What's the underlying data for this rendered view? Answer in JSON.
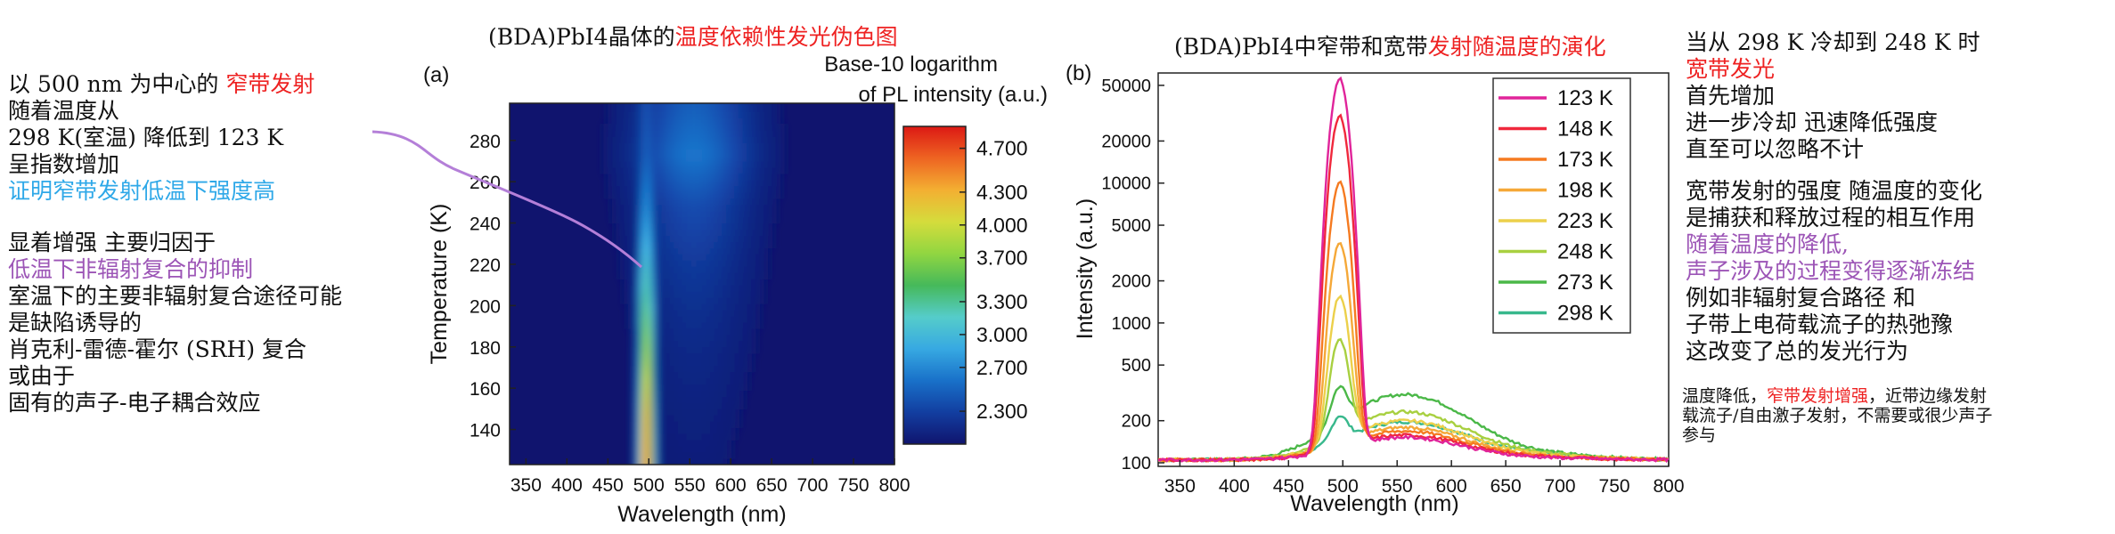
{
  "titles": {
    "left_prefix": "(BDA)PbI4晶体的",
    "left_highlight": "温度依赖性发光伪色图",
    "right_prefix": "(BDA)PbI4中窄带和宽带",
    "right_highlight": "发射随温度的演化"
  },
  "left_notes": {
    "line1_prefix": "以 500 nm 为中心的 ",
    "line1_highlight": "窄带发射",
    "line2": "随着温度从",
    "line3": "298 K(室温) 降低到 123 K",
    "line4": "呈指数增加",
    "line5": "证明窄带发射低温下强度高",
    "line6": "显着增强  主要归因于",
    "line7": "低温下非辐射复合的抑制",
    "line8": "室温下的主要非辐射复合途径可能",
    "line9": "是缺陷诱导的",
    "line10": "肖克利-雷德-霍尔 (SRH) 复合",
    "line11": "或由于",
    "line12": "固有的声子-电子耦合效应"
  },
  "right_notes": {
    "p1_line1": "当从 298 K 冷却到 248 K 时",
    "p1_line2": "宽带发光",
    "p1_line3": "首先增加",
    "p1_line4": "进一步冷却 迅速降低强度",
    "p1_line5": "直至可以忽略不计",
    "p2_line1": "宽带发射的强度 随温度的变化",
    "p2_line2": "是捕获和释放过程的相互作用",
    "p2_line3": "随着温度的降低,",
    "p2_line4": "声子涉及的过程变得逐渐冻结",
    "p2_line5": "例如非辐射复合路径 和",
    "p2_line6": "子带上电荷载流子的热弛豫",
    "p2_line7": "这改变了总的发光行为",
    "p3_line1_prefix": "温度降低，",
    "p3_line1_highlight": "窄带发射增强",
    "p3_line1_suffix": "，近带边缘发射",
    "p3_line2": "载流子/自由激子发射，不需要或很少声子",
    "p3_line3": "参与"
  },
  "chart_data": [
    {
      "panel_label": "(a)",
      "type": "heatmap",
      "xlabel": "Wavelength (nm)",
      "ylabel": "Temperature (K)",
      "xlim": [
        330,
        800
      ],
      "ylim": [
        123,
        298
      ],
      "xticks": [
        350,
        400,
        450,
        500,
        550,
        600,
        650,
        700,
        750,
        800
      ],
      "yticks": [
        140,
        160,
        180,
        200,
        220,
        240,
        260,
        280
      ],
      "colorbar": {
        "title_line1": "Base-10 logarithm",
        "title_line2": "of PL intensity (a.u.)",
        "ticks": [
          "4.700",
          "4.300",
          "4.000",
          "3.700",
          "3.300",
          "3.000",
          "2.700",
          "2.300"
        ],
        "range": [
          2.0,
          4.9
        ]
      },
      "rows_temperature_K": [
        123,
        148,
        173,
        198,
        223,
        248,
        273,
        298
      ],
      "peak_center_nm": 497,
      "peak_log_intensity": [
        4.75,
        4.47,
        4.0,
        3.58,
        3.15,
        2.8,
        2.55,
        2.45
      ],
      "broad_center_nm": 555,
      "broad_log_intensity": [
        2.05,
        2.07,
        2.1,
        2.14,
        2.2,
        2.28,
        2.45,
        2.35
      ]
    },
    {
      "panel_label": "(b)",
      "type": "line",
      "xlabel": "Wavelength (nm)",
      "ylabel": "Intensity (a.u.)",
      "xlim": [
        330,
        800
      ],
      "ylim": [
        100,
        65000
      ],
      "yscale": "log",
      "xticks": [
        350,
        400,
        450,
        500,
        550,
        600,
        650,
        700,
        750,
        800
      ],
      "yticks": [
        100,
        200,
        500,
        1000,
        2000,
        5000,
        10000,
        20000,
        50000
      ],
      "legend_placement": "top-right",
      "series": [
        {
          "name": "123 K",
          "color": "#e0249a",
          "peak": 56000,
          "broad": 45,
          "tail": 120
        },
        {
          "name": "148 K",
          "color": "#f0283c",
          "peak": 30000,
          "broad": 50,
          "tail": 125
        },
        {
          "name": "173 K",
          "color": "#f57a20",
          "peak": 10000,
          "broad": 60,
          "tail": 130
        },
        {
          "name": "198 K",
          "color": "#f5a838",
          "peak": 3600,
          "broad": 70,
          "tail": 135
        },
        {
          "name": "223 K",
          "color": "#ecd04a",
          "peak": 1400,
          "broad": 90,
          "tail": 140
        },
        {
          "name": "248 K",
          "color": "#a8d040",
          "peak": 600,
          "broad": 120,
          "tail": 150
        },
        {
          "name": "273 K",
          "color": "#4bb848",
          "peak": 150,
          "broad": 195,
          "tail": 160
        },
        {
          "name": "298 K",
          "color": "#38b88c",
          "peak": 70,
          "broad": 85,
          "tail": 150
        }
      ],
      "peak_center_nm": 497,
      "broad_center_nm": 555
    }
  ]
}
